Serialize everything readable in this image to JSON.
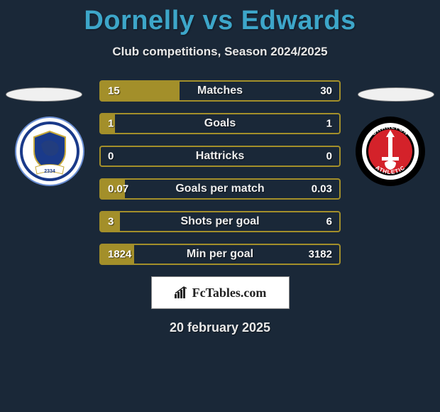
{
  "title": "Dornelly vs Edwards",
  "title_color": "#3da6c9",
  "subtitle": "Club competitions, Season 2024/2025",
  "background_color": "#1a2838",
  "left_team": {
    "flag_bg": "#f0f0f0",
    "crest": {
      "outer": "#1a3a8a",
      "inner": "#ffffff",
      "shield_border": "#c7a93a",
      "shield_fill": "#1a3a8a",
      "year_text": "2334",
      "banner_fill": "#ffffff"
    }
  },
  "right_team": {
    "flag_bg": "#f0f0f0",
    "crest": {
      "outer": "#000000",
      "ring": "#ffffff",
      "inner": "#d4222a",
      "sword": "#ffffff",
      "top_text": "CHARLTON",
      "bottom_text": "ATHLETIC"
    }
  },
  "stats": {
    "border_color": "#a38f2a",
    "fill_color": "#a38f2a",
    "rows": [
      {
        "label": "Matches",
        "left_val": "15",
        "right_val": "30",
        "left_pct": 33,
        "right_pct": 0
      },
      {
        "label": "Goals",
        "left_val": "1",
        "right_val": "1",
        "left_pct": 6,
        "right_pct": 0
      },
      {
        "label": "Hattricks",
        "left_val": "0",
        "right_val": "0",
        "left_pct": 0,
        "right_pct": 0
      },
      {
        "label": "Goals per match",
        "left_val": "0.07",
        "right_val": "0.03",
        "left_pct": 10,
        "right_pct": 0
      },
      {
        "label": "Shots per goal",
        "left_val": "3",
        "right_val": "6",
        "left_pct": 8,
        "right_pct": 0
      },
      {
        "label": "Min per goal",
        "left_val": "1824",
        "right_val": "3182",
        "left_pct": 14,
        "right_pct": 0
      }
    ]
  },
  "brand": "FcTables.com",
  "date": "20 february 2025"
}
